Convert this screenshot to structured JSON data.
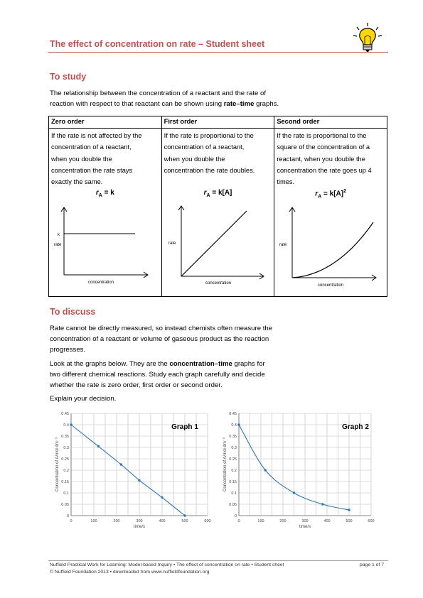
{
  "header": {
    "title": "The effect of concentration on rate – Student sheet",
    "icon": "lightbulb-icon"
  },
  "study": {
    "heading": "To study",
    "intro_lines": [
      "The relationship between the concentration of a reactant and the rate of",
      "reaction with respect to that reactant can be shown using "
    ],
    "intro_bold": "rate–time",
    "intro_end": " graphs."
  },
  "orders_table": {
    "columns": [
      {
        "header": "Zero order",
        "lines": [
          "If the rate is not affected by the",
          "concentration of a reactant,",
          "when you double the",
          "concentration the rate stays",
          "exactly the same."
        ],
        "eq_left": "r",
        "eq_sub": "A",
        "eq_right": " = k",
        "eq_sup": "",
        "graph": {
          "type": "line",
          "ylabel": "rate",
          "xlabel": "concentration",
          "tick_label": "k"
        }
      },
      {
        "header": "First order",
        "lines": [
          "If the rate is proportional to the",
          "concentration of a reactant,",
          "when you double the",
          "concentration the rate doubles."
        ],
        "eq_left": "r",
        "eq_sub": "A",
        "eq_right": " = k[A]",
        "eq_sup": "",
        "graph": {
          "type": "line",
          "ylabel": "rate",
          "xlabel": "concentration"
        }
      },
      {
        "header": "Second order",
        "lines": [
          "If the rate is proportional to the",
          "square of the concentration of a",
          "reactant, when you double the",
          "concentration the rate goes up 4",
          "times."
        ],
        "eq_left": "r",
        "eq_sub": "A",
        "eq_right": " = k[A]",
        "eq_sup": "2",
        "graph": {
          "type": "line",
          "ylabel": "rate",
          "xlabel": "concentration"
        }
      }
    ]
  },
  "discuss": {
    "heading": "To discuss",
    "para1": [
      "Rate cannot be directly measured, so instead chemists often measure the",
      "concentration of a reactant or volume of gaseous product as the reaction",
      "progresses."
    ],
    "para2_start": "Look at the graphs below. They are the ",
    "para2_bold": "concentration–time",
    "para2_end": " graphs for",
    "para2_lines": [
      "two different chemical reactions. Study each graph carefully and decide",
      "whether the rate is zero order, first order or second order."
    ],
    "para3": "Explain your decision."
  },
  "chart_data": [
    {
      "type": "line",
      "title": "Graph 1",
      "xlabel": "time/s",
      "ylabel": "Concentration of A/mol dm⁻³",
      "xlim": [
        0,
        600
      ],
      "ylim": [
        0,
        0.45
      ],
      "x_ticks": [
        "0",
        "100",
        "200",
        "300",
        "400",
        "500",
        "600"
      ],
      "y_ticks": [
        "0",
        "0.05",
        "0.1",
        "0.15",
        "0.2",
        "0.25",
        "0.3",
        "0.35",
        "0.4",
        "0.45"
      ],
      "series": [
        {
          "x": [
            0,
            120,
            220,
            300,
            400,
            500
          ],
          "y": [
            0.4,
            0.305,
            0.225,
            0.155,
            0.08,
            0.0
          ]
        }
      ]
    },
    {
      "type": "line",
      "title": "Graph 2",
      "xlabel": "time/s",
      "ylabel": "Concentration of A/mol dm⁻³",
      "xlim": [
        0,
        600
      ],
      "ylim": [
        0,
        0.45
      ],
      "x_ticks": [
        "0",
        "100",
        "200",
        "300",
        "400",
        "500",
        "600"
      ],
      "y_ticks": [
        "0",
        "0.05",
        "0.1",
        "0.15",
        "0.2",
        "0.25",
        "0.3",
        "0.35",
        "0.4",
        "0.45"
      ],
      "series": [
        {
          "x": [
            0,
            120,
            250,
            380,
            500
          ],
          "y": [
            0.4,
            0.2,
            0.1,
            0.05,
            0.025
          ]
        }
      ]
    }
  ],
  "footer": {
    "line1": "Nuffield Practical Work for Learning: Model-based Inquiry • The effect of concentration on rate • Student sheet",
    "line2": "© Nuffield Foundation 2013 • downloaded from www.nuffieldfoundation.org",
    "page": "page 1 of 7"
  }
}
